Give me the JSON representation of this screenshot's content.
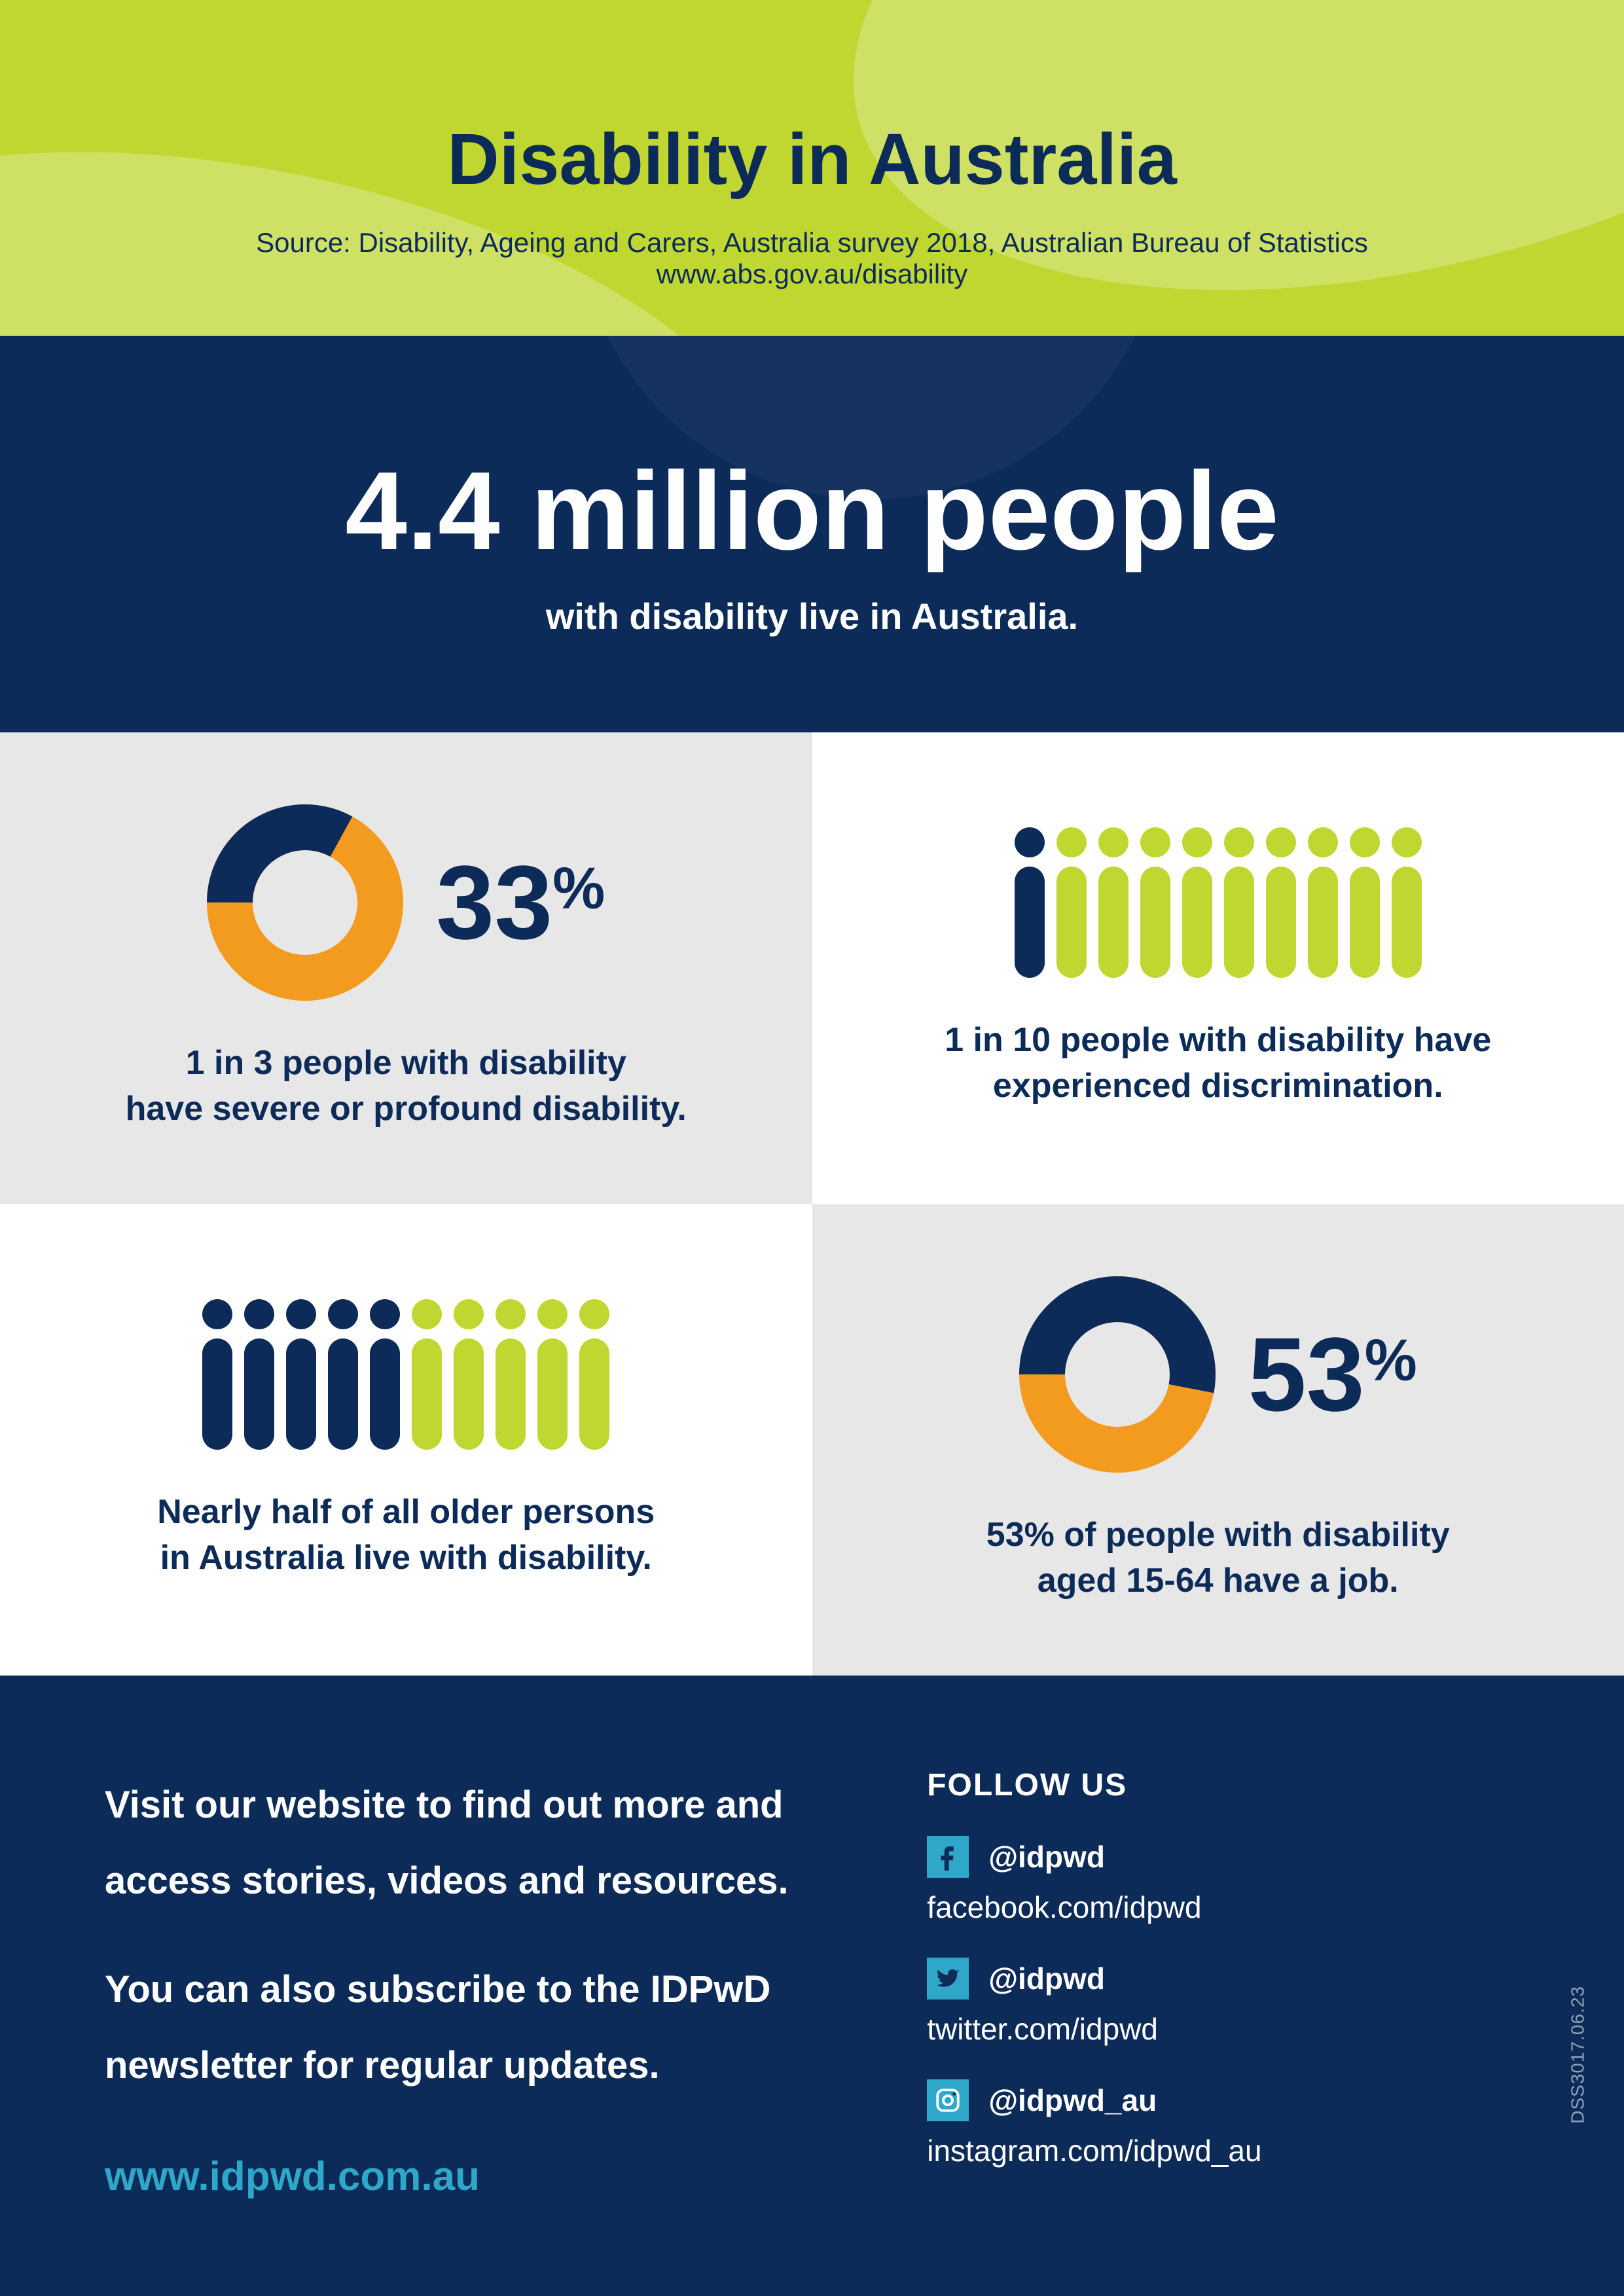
{
  "header": {
    "title": "Disability in Australia",
    "source": "Source: Disability, Ageing and Carers, Australia survey 2018, Australian Bureau of Statistics www.abs.gov.au/disability",
    "bg_color": "#bfd730",
    "title_color": "#0d2b59",
    "title_fontsize": 110,
    "source_fontsize": 42
  },
  "hero": {
    "headline": "4.4 million people",
    "sub": "with disability live in Australia.",
    "bg_color": "#0d2b59",
    "text_color": "#ffffff",
    "headline_fontsize": 170,
    "sub_fontsize": 56
  },
  "cards": [
    {
      "type": "donut",
      "bg_color": "#e7e7e7",
      "percent_value": 33,
      "percent_label": "33",
      "donut_size": 300,
      "donut_stroke": 70,
      "track_color": "#f39b1f",
      "value_color": "#0d2b59",
      "text": "1 in 3 people with disability\nhave severe or profound disability."
    },
    {
      "type": "pictograph",
      "bg_color": "#ffffff",
      "total": 10,
      "highlighted": 1,
      "on_color": "#0d2b59",
      "off_color": "#bfd730",
      "text": "1 in 10 people with disability have\nexperienced discrimination."
    },
    {
      "type": "pictograph",
      "bg_color": "#ffffff",
      "total": 10,
      "highlighted": 5,
      "on_color": "#0d2b59",
      "off_color": "#bfd730",
      "text": "Nearly half of all older persons\nin Australia live with disability."
    },
    {
      "type": "donut",
      "bg_color": "#e7e7e7",
      "percent_value": 53,
      "percent_label": "53",
      "donut_size": 300,
      "donut_stroke": 70,
      "track_color": "#f39b1f",
      "value_color": "#0d2b59",
      "text": "53% of people with disability\naged 15-64 have a job."
    }
  ],
  "footer": {
    "bg_color": "#0d2b59",
    "para1": "Visit our website to find out more and",
    "para2": "access stories, videos and resources.",
    "para3": "You can also subscribe to the IDPwD",
    "para4": "newsletter for regular updates.",
    "website": "www.idpwd.com.au",
    "website_color": "#2ea7c9",
    "follow_label": "FOLLOW US",
    "socials": [
      {
        "icon": "facebook",
        "handle": "@idpwd",
        "url": "facebook.com/idpwd"
      },
      {
        "icon": "twitter",
        "handle": "@idpwd",
        "url": "twitter.com/idpwd"
      },
      {
        "icon": "instagram",
        "handle": "@idpwd_au",
        "url": "instagram.com/idpwd_au"
      }
    ],
    "icon_bg": "#2ea7c9",
    "doc_ref": "DSS3017.06.23"
  },
  "pct_sign": "%"
}
